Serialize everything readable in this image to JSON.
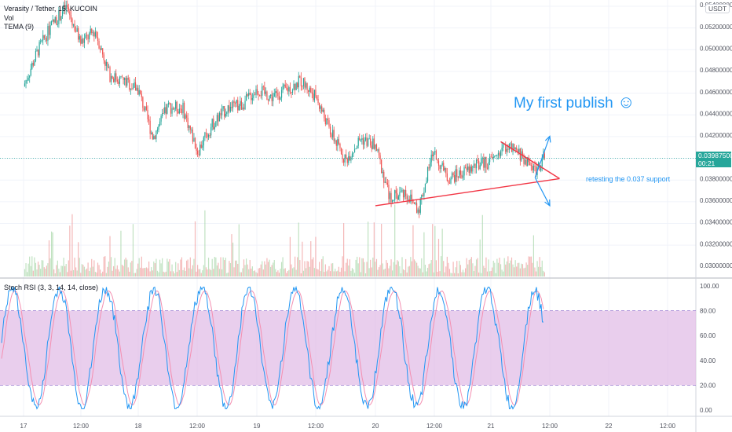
{
  "header": {
    "symbol": "Verasity / Tether, 15, KUCOIN",
    "vol_label": "Vol",
    "tema_label": "TEMA (9)",
    "currency": "USDT"
  },
  "rsi_panel": {
    "label": "Stoch RSI (3, 3, 14, 14, close)"
  },
  "annotations": {
    "publish_text": "My first publish",
    "publish_emoji": "☺",
    "support_note": "retesting the 0.037 support"
  },
  "price_badge": {
    "price": "0.03987500",
    "countdown": "00:21",
    "color": "#26a69a"
  },
  "colors": {
    "up": "#26a69a",
    "down": "#ef5350",
    "trend": "#f23645",
    "arrow": "#2196f3",
    "rsi_band": "#e1bee7",
    "rsi_k": "#2196f3",
    "rsi_d": "#f48fb1"
  },
  "chart_data": [
    {
      "type": "candlestick",
      "title": "Verasity / Tether, 15, KUCOIN",
      "x_ticks": [
        "17",
        "12:00",
        "18",
        "12:00",
        "19",
        "12:00",
        "20",
        "12:00",
        "21",
        "12:00",
        "22",
        "12:00"
      ],
      "y_ticks": [
        "0.05400000",
        "0.05200000",
        "0.05000000",
        "0.04800000",
        "0.04600000",
        "0.04400000",
        "0.04200000",
        "0.03800000",
        "0.03600000",
        "0.03400000",
        "0.03200000",
        "0.03000000"
      ],
      "ylim": [
        0.029,
        0.0545
      ],
      "close_path": [
        [
          "17 00:00",
          0.0465
        ],
        [
          "17 03:00",
          0.0498
        ],
        [
          "17 06:00",
          0.0522
        ],
        [
          "17 09:00",
          0.0538
        ],
        [
          "17 12:00",
          0.0505
        ],
        [
          "17 15:00",
          0.0516
        ],
        [
          "17 18:00",
          0.0475
        ],
        [
          "17 21:00",
          0.047
        ],
        [
          "18 00:00",
          0.0462
        ],
        [
          "18 03:00",
          0.0418
        ],
        [
          "18 06:00",
          0.0446
        ],
        [
          "18 09:00",
          0.0445
        ],
        [
          "18 12:00",
          0.0405
        ],
        [
          "18 15:00",
          0.043
        ],
        [
          "18 18:00",
          0.0445
        ],
        [
          "18 21:00",
          0.0448
        ],
        [
          "19 00:00",
          0.0462
        ],
        [
          "19 03:00",
          0.0455
        ],
        [
          "19 06:00",
          0.0462
        ],
        [
          "19 09:00",
          0.047
        ],
        [
          "19 12:00",
          0.0455
        ],
        [
          "19 15:00",
          0.0422
        ],
        [
          "19 18:00",
          0.0397
        ],
        [
          "19 21:00",
          0.0417
        ],
        [
          "20 00:00",
          0.041
        ],
        [
          "20 03:00",
          0.0362
        ],
        [
          "20 06:00",
          0.0368
        ],
        [
          "20 09:00",
          0.0352
        ],
        [
          "20 12:00",
          0.0405
        ],
        [
          "20 15:00",
          0.038
        ],
        [
          "20 18:00",
          0.0385
        ],
        [
          "20 21:00",
          0.0392
        ],
        [
          "21 00:00",
          0.0396
        ],
        [
          "21 03:00",
          0.041
        ],
        [
          "21 06:00",
          0.0402
        ],
        [
          "21 09:00",
          0.0388
        ],
        [
          "21 11:00",
          0.0399
        ]
      ],
      "current_price": 0.039875,
      "trendlines": [
        {
          "from": [
            "20 00:00",
            0.0355
          ],
          "to": [
            "21 14:00",
            0.038
          ]
        },
        {
          "from": [
            "21 02:00",
            0.0414
          ],
          "to": [
            "21 14:00",
            0.038
          ]
        }
      ],
      "arrows": [
        {
          "from": [
            "21 09:00",
            0.0381
          ],
          "to": [
            "21 12:00",
            0.0419
          ]
        },
        {
          "from": [
            "21 09:00",
            0.0381
          ],
          "to": [
            "21 12:00",
            0.0355
          ]
        }
      ]
    },
    {
      "type": "line",
      "title": "Stoch RSI (3, 3, 14, 14, close)",
      "y_ticks": [
        "100.00",
        "80.00",
        "60.00",
        "40.00",
        "20.00",
        "0.00"
      ],
      "ylim": [
        -5,
        104
      ],
      "band": [
        20,
        80
      ]
    }
  ]
}
